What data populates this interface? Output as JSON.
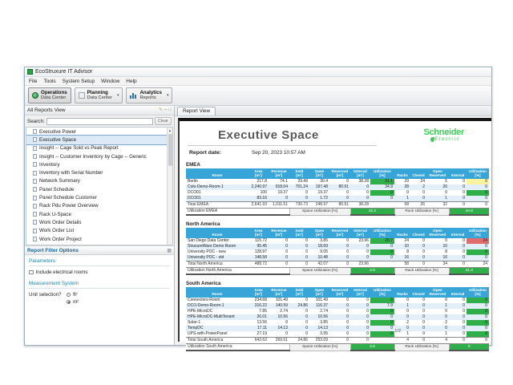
{
  "window": {
    "title": "EcoStruxure IT Advisor"
  },
  "menu": [
    "File",
    "Tools",
    "System Setup",
    "Window",
    "Help"
  ],
  "toolbar": {
    "buttons": [
      {
        "title": "Operations",
        "subtitle": "Data Center",
        "icon": "globe-icon",
        "dropdown": false,
        "selected": true
      },
      {
        "title": "Planning",
        "subtitle": "Data Center",
        "icon": "planning-icon",
        "dropdown": true,
        "selected": false
      },
      {
        "title": "Analytics",
        "subtitle": "Reports",
        "icon": "analytics-bars-icon",
        "dropdown": true,
        "selected": false
      }
    ]
  },
  "left_panel": {
    "header": "All Reports View",
    "search_label": "Search:",
    "search_value": "",
    "clear_label": "Clear",
    "selected_report": "Executive Space",
    "reports": [
      "Executive Power",
      "Executive Space",
      "Insight -- Cage Sold vs Peak Report",
      "Insight -- Customer Inventory by Cage -- Generic",
      "Inventory",
      "Inventory with Serial Number",
      "Network Summary",
      "Panel Schedule",
      "Panel Schedule Customer",
      "Rack Pdu Power Overview",
      "Rack U-Space",
      "Work Order Details",
      "Work Order List",
      "Work Order Project"
    ],
    "filter_options_title": "Report Filter Options",
    "parameters_title": "Parameters",
    "checkbox_label": "Include electrical rooms",
    "checkbox_checked": false,
    "measurement_title": "Measurement System",
    "unit_label": "Unit selection?",
    "unit_options": [
      {
        "label": "ft²",
        "selected": false
      },
      {
        "label": "m²",
        "selected": true
      }
    ]
  },
  "report": {
    "tab": "Report View",
    "title": "Executive Space",
    "logo": {
      "line1": "Schneider",
      "line2": "Electric"
    },
    "date_label": "Report date:",
    "date_value": "Sep 20, 2023 10:57 AM",
    "page": "1/2",
    "colors": {
      "header_blue": "#38a5d8",
      "util_green": "#2fae49",
      "util_yellow": "#f9f3a0",
      "util_red": "#e06c6c",
      "brand_green": "#3dcd58"
    },
    "columns": [
      {
        "label": "Room",
        "unit": ""
      },
      {
        "label": "Area",
        "unit": "[m²]"
      },
      {
        "label": "Revenue",
        "unit": "[m²]"
      },
      {
        "label": "Sold",
        "unit": "[m²]"
      },
      {
        "label": "Open",
        "unit": "[m²]"
      },
      {
        "label": "Reserved",
        "unit": "[m²]"
      },
      {
        "label": "Internal",
        "unit": "[m²]"
      },
      {
        "label": "Utilization",
        "unit": "[%]"
      },
      {
        "label": "Racks",
        "unit": ""
      },
      {
        "label": "Closed",
        "unit": ""
      },
      {
        "label": "Open Reserved",
        "unit": ""
      },
      {
        "label": "Internal",
        "unit": ""
      },
      {
        "label": "Utilization",
        "unit": "[%]"
      }
    ],
    "regions": [
      {
        "name": "EMEA",
        "rows": [
          {
            "cells": [
              "Berlin",
              "217.8",
              "74.1",
              "29.49",
              "30.4",
              "0",
              "38.28",
              "31.1",
              "29",
              "24",
              "5",
              "0",
              "0",
              "82.8"
            ],
            "su_color": "g",
            "ru_color": "y"
          },
          {
            "cells": [
              "Colo-Demo-Room-1",
              "2,240.97",
              "918.04",
              "701.24",
              "197.48",
              "80.91",
              "0",
              "34.9",
              "28",
              "2",
              "26",
              "0",
              "0",
              "7.1"
            ],
            "su_color": "g",
            "ru_color": "g"
          },
          {
            "cells": [
              "DCO01",
              "100",
              "19.37",
              "0",
              "19.37",
              "0",
              "0",
              "0",
              "0",
              "0",
              "0",
              "0",
              "0",
              "0"
            ],
            "su_color": "g",
            "ru_color": "g"
          },
          {
            "cells": [
              "DCO01",
              "83.16",
              "0",
              "0",
              "1.72",
              "0",
              "0",
              "0",
              "1",
              "0",
              "1",
              "0",
              "0",
              "0"
            ],
            "su_color": "g",
            "ru_color": "g"
          }
        ],
        "total": {
          "cells": [
            "Total EMEA",
            "2,641.93",
            "1,011.51",
            "730.73",
            "248.97",
            "80.91",
            "38.28",
            "",
            "58",
            "26",
            "32",
            "0",
            "0",
            ""
          ]
        },
        "util_label": "Utilization EMEA",
        "space_util_label": "Space Utilization [%]",
        "space_util": "32.2",
        "rack_util_label": "Rack Utilization [%]",
        "rack_util": "44.8"
      },
      {
        "name": "North America",
        "rows": [
          {
            "cells": [
              "San Diego Data Center",
              "115.72",
              "0",
              "0",
              "3.85",
              "0",
              "23.96",
              "20.7",
              "24",
              "0",
              "0",
              "0",
              "24",
              "100"
            ],
            "su_color": "g",
            "ru_color": "r"
          },
          {
            "cells": [
              "StruxureWare Demo Room",
              "95.45",
              "0",
              "0",
              "18.69",
              "0",
              "0",
              "0",
              "10",
              "0",
              "10",
              "0",
              "0",
              "0"
            ],
            "su_color": "g",
            "ru_color": "g"
          },
          {
            "cells": [
              "University POC - new",
              "128.97",
              "0",
              "0",
              "9.05",
              "0",
              "0",
              "0",
              "8",
              "0",
              "8",
              "0",
              "0",
              "0"
            ],
            "su_color": "g",
            "ru_color": "g"
          },
          {
            "cells": [
              "University POC - old",
              "148.58",
              "0",
              "0",
              "10.48",
              "0",
              "0",
              "0",
              "16",
              "0",
              "16",
              "0",
              "0",
              "0"
            ],
            "su_color": "g",
            "ru_color": "g"
          }
        ],
        "total": {
          "cells": [
            "Total North America",
            "488.72",
            "0",
            "0",
            "42.07",
            "0",
            "23.96",
            "",
            "58",
            "0",
            "34",
            "0",
            "24",
            ""
          ]
        },
        "util_label": "Utilization North America",
        "space_util_label": "Space Utilization [%]",
        "space_util": "4.9",
        "rack_util_label": "Rack Utilization [%]",
        "rack_util": "41.4"
      },
      {
        "name": "South America",
        "rows": [
          {
            "cells": [
              "Connectors-Room",
              "234.68",
              "101.49",
              "0",
              "101.49",
              "0",
              "0",
              "0",
              "0",
              "0",
              "0",
              "0",
              "0",
              "0"
            ],
            "su_color": "g",
            "ru_color": "g"
          },
          {
            "cells": [
              "DCO-Demo-Room-1",
              "316.22",
              "140.59",
              "24.86",
              "116.37",
              "0",
              "0",
              "7.9",
              "1",
              "0",
              "1",
              "0",
              "0",
              "0"
            ],
            "su_color": "g",
            "ru_color": "g"
          },
          {
            "cells": [
              "HPE-MicroDC",
              "7.85",
              "2.74",
              "0",
              "2.74",
              "0",
              "0",
              "0",
              "0",
              "0",
              "0",
              "0",
              "0",
              "0"
            ],
            "su_color": "g",
            "ru_color": "g"
          },
          {
            "cells": [
              "HPE-MicroDC-MultiTenant",
              "26.01",
              "10.56",
              "0",
              "10.56",
              "0",
              "0",
              "0",
              "0",
              "0",
              "0",
              "0",
              "0",
              "0"
            ],
            "su_color": "g",
            "ru_color": "g"
          },
          {
            "cells": [
              "Solar-1",
              "13.56",
              "0",
              "0",
              "3.85",
              "0",
              "0",
              "0",
              "2",
              "0",
              "2",
              "0",
              "0",
              "0"
            ],
            "su_color": "g",
            "ru_color": "g"
          },
          {
            "cells": [
              "TempDC",
              "17.11",
              "14.13",
              "0",
              "14.13",
              "0",
              "0",
              "0",
              "0",
              "0",
              "0",
              "0",
              "0",
              "0"
            ],
            "su_color": "g",
            "ru_color": "g"
          },
          {
            "cells": [
              "UPS-with-PowerPanel",
              "27.19",
              "0",
              "0",
              "3.95",
              "0",
              "0",
              "0",
              "1",
              "0",
              "1",
              "0",
              "0",
              "0"
            ],
            "su_color": "g",
            "ru_color": "g"
          }
        ],
        "total": {
          "cells": [
            "Total South America",
            "642.62",
            "269.51",
            "24.86",
            "253.09",
            "0",
            "0",
            "",
            "4",
            "0",
            "4",
            "0",
            "0",
            ""
          ]
        },
        "util_label": "Utilization South America",
        "space_util_label": "Space Utilization [%]",
        "space_util": "3.9",
        "rack_util_label": "Rack Utilization [%]",
        "rack_util": "0"
      }
    ]
  }
}
